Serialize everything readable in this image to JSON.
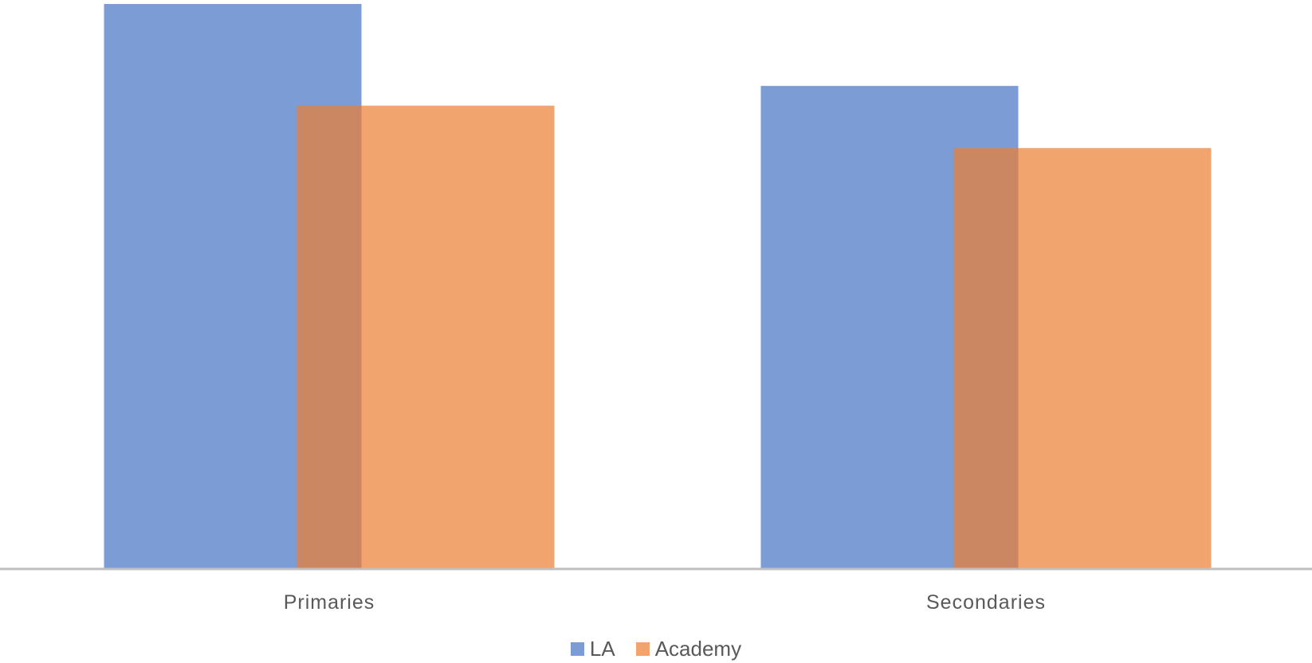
{
  "chart_data": {
    "type": "bar",
    "categories": [
      "Primaries",
      "Secondaries"
    ],
    "series": [
      {
        "name": "LA",
        "values": [
          100,
          85.5
        ],
        "color": "#4472C4"
      },
      {
        "name": "Academy",
        "values": [
          82,
          74.5
        ],
        "color": "#ED7D31"
      }
    ],
    "bar_overlap": true,
    "series_opacity": 0.7,
    "ylim": [
      0,
      100
    ],
    "grid": false,
    "legend_position": "bottom",
    "title": "",
    "xlabel": "",
    "ylabel": ""
  },
  "legend": {
    "items": [
      {
        "label": "LA",
        "color": "#4472C4"
      },
      {
        "label": "Academy",
        "color": "#ED7D31"
      }
    ]
  }
}
